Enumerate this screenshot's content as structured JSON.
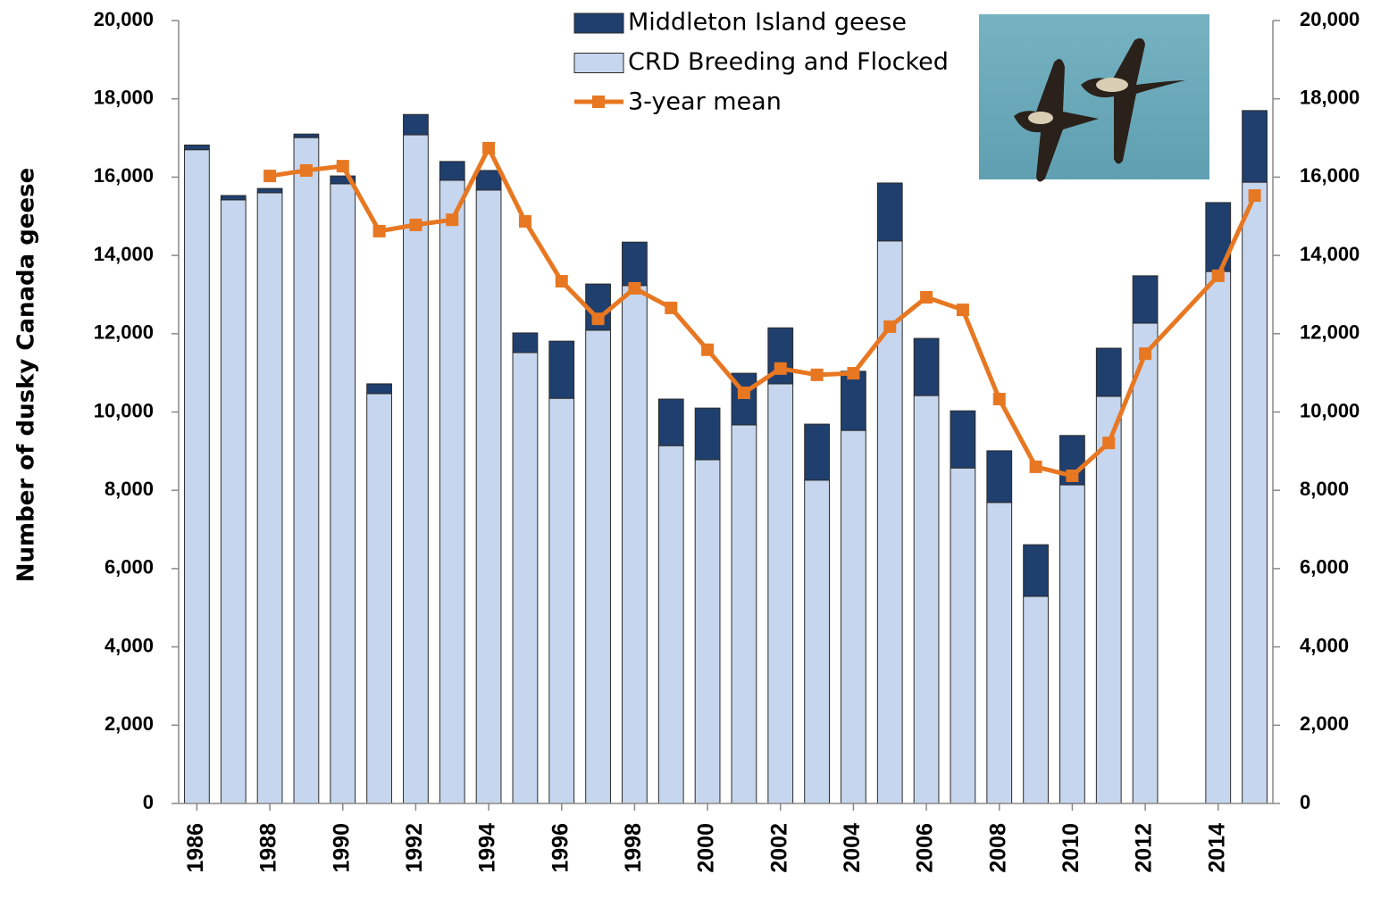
{
  "chart_data": {
    "type": "bar",
    "ylabel": "Number of dusky Canada geese",
    "x": [
      1986,
      1987,
      1988,
      1989,
      1990,
      1991,
      1992,
      1993,
      1994,
      1995,
      1996,
      1997,
      1998,
      1999,
      2000,
      2001,
      2002,
      2003,
      2004,
      2005,
      2006,
      2007,
      2008,
      2009,
      2010,
      2011,
      2012,
      2014,
      2015
    ],
    "xlim": [
      1985.5,
      2015.5
    ],
    "xticks": [
      1986,
      1988,
      1990,
      1992,
      1994,
      1996,
      1998,
      2000,
      2002,
      2004,
      2006,
      2008,
      2010,
      2012,
      2014
    ],
    "series": [
      {
        "name": "Middleton Island geese",
        "type": "bar",
        "color": "#1f3f6e",
        "values": [
          120,
          110,
          110,
          90,
          200,
          250,
          520,
          480,
          500,
          500,
          1460,
          1180,
          1110,
          1190,
          1320,
          1320,
          1430,
          1430,
          1510,
          1480,
          1460,
          1460,
          1320,
          1320,
          1260,
          1230,
          1210,
          1760,
          1830
        ]
      },
      {
        "name": "CRD Breeding and Flocked",
        "type": "bar",
        "color": "#c6d6ee",
        "values": [
          16700,
          15420,
          15600,
          17010,
          15830,
          10470,
          17080,
          15920,
          15670,
          11520,
          10350,
          12090,
          13230,
          9140,
          8780,
          9670,
          10720,
          8260,
          9530,
          14370,
          10420,
          8570,
          7690,
          5290,
          8140,
          10400,
          12270,
          13590,
          15870
        ]
      },
      {
        "name": "3-year mean",
        "type": "line",
        "color": "#e87722",
        "values": [
          null,
          null,
          16030,
          16170,
          16280,
          14620,
          14780,
          14910,
          16740,
          14870,
          13340,
          12380,
          13160,
          12660,
          11590,
          10490,
          11110,
          10950,
          10990,
          12180,
          12930,
          12610,
          10330,
          8600,
          8370,
          9210,
          11490,
          13480,
          15530
        ]
      }
    ],
    "ylim": [
      0,
      20000
    ],
    "yticks": [
      0,
      {
        "value": 2000,
        "label": "2,000"
      },
      {
        "value": 4000,
        "label": "4,000"
      },
      {
        "value": 6000,
        "label": "6,000"
      },
      {
        "value": 8000,
        "label": "8,000"
      },
      {
        "value": 10000,
        "label": "10,000"
      },
      {
        "value": 12000,
        "label": "12,000"
      },
      {
        "value": 14000,
        "label": "14,000"
      },
      {
        "value": 16000,
        "label": "16,000"
      },
      {
        "value": 18000,
        "label": "18,000"
      },
      {
        "value": 20000,
        "label": "20,000"
      }
    ],
    "y2lim": [
      0,
      20000
    ],
    "y2ticks": [
      0,
      {
        "value": 2000,
        "label": "2,000"
      },
      {
        "value": 4000,
        "label": "4,000"
      },
      {
        "value": 6000,
        "label": "6,000"
      },
      {
        "value": 8000,
        "label": "8,000"
      },
      {
        "value": 10000,
        "label": "10,000"
      },
      {
        "value": 12000,
        "label": "12,000"
      },
      {
        "value": 14000,
        "label": "14,000"
      },
      {
        "value": 16000,
        "label": "16,000"
      },
      {
        "value": 18000,
        "label": "18,000"
      },
      {
        "value": 20000,
        "label": "20,000"
      }
    ],
    "grid": false,
    "legend": "top"
  }
}
